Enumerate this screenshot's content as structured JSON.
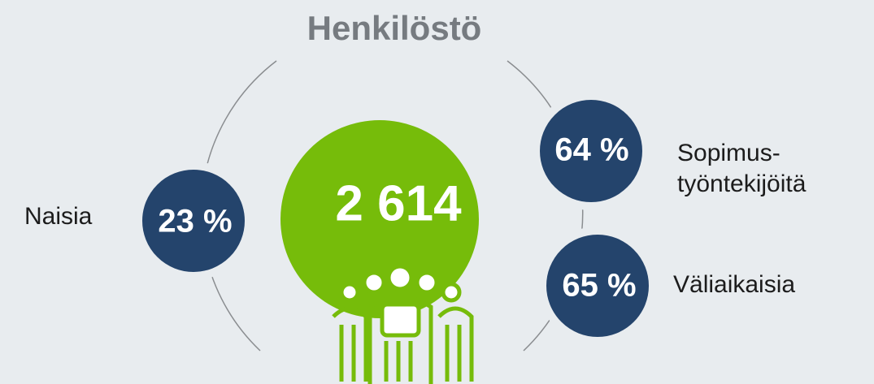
{
  "title": "Henkilöstö",
  "total": "2 614",
  "stats": [
    {
      "value": "23 %",
      "label": [
        "Naisia"
      ]
    },
    {
      "value": "64 %",
      "label": [
        "Sopimus-",
        "työntekijöitä"
      ]
    },
    {
      "value": "65 %",
      "label": [
        "Väliaikaisia"
      ]
    }
  ]
}
